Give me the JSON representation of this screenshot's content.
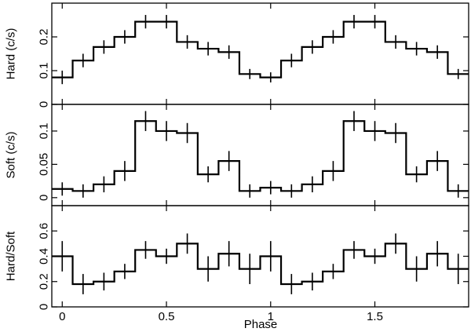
{
  "chart_data": {
    "type": "line",
    "title": "",
    "xlabel": "Phase",
    "xlim": [
      -0.05,
      1.95
    ],
    "xticks": [
      0,
      0.5,
      1,
      1.5
    ],
    "xtick_labels": [
      "0",
      "0.5",
      "1",
      "1.5"
    ],
    "bin_width": 0.1,
    "bin_centers": [
      0,
      0.1,
      0.2,
      0.3,
      0.4,
      0.5,
      0.6,
      0.7,
      0.8,
      0.9,
      1.0,
      1.1,
      1.2,
      1.3,
      1.4,
      1.5,
      1.6,
      1.7,
      1.8,
      1.9
    ],
    "panels": [
      {
        "ylabel": "Hard (c/s)",
        "ylim": [
          0,
          0.3
        ],
        "yticks": [
          0,
          0.1,
          0.2
        ],
        "ytick_labels": [
          "0",
          "0.1",
          "0.2"
        ],
        "values": [
          0.08,
          0.13,
          0.17,
          0.2,
          0.245,
          0.245,
          0.185,
          0.165,
          0.155,
          0.09,
          0.08,
          0.13,
          0.17,
          0.2,
          0.245,
          0.245,
          0.185,
          0.165,
          0.155,
          0.09
        ],
        "errors": [
          0.02,
          0.02,
          0.02,
          0.02,
          0.02,
          0.02,
          0.02,
          0.02,
          0.02,
          0.015,
          0.015,
          0.02,
          0.02,
          0.02,
          0.02,
          0.02,
          0.02,
          0.02,
          0.02,
          0.015
        ]
      },
      {
        "ylabel": "Soft (c/s)",
        "ylim": [
          -0.012,
          0.14
        ],
        "yticks": [
          0,
          0.05,
          0.1
        ],
        "ytick_labels": [
          "0",
          "0.05",
          "0.1"
        ],
        "values": [
          0.013,
          0.01,
          0.02,
          0.04,
          0.115,
          0.1,
          0.097,
          0.035,
          0.055,
          0.01,
          0.015,
          0.01,
          0.02,
          0.04,
          0.115,
          0.1,
          0.097,
          0.035,
          0.055,
          0.01
        ],
        "errors": [
          0.01,
          0.01,
          0.012,
          0.015,
          0.015,
          0.015,
          0.015,
          0.012,
          0.015,
          0.01,
          0.01,
          0.01,
          0.012,
          0.015,
          0.015,
          0.015,
          0.015,
          0.012,
          0.015,
          0.01
        ]
      },
      {
        "ylabel": "Hard/Soft",
        "ylim": [
          0,
          0.8
        ],
        "yticks": [
          0,
          0.2,
          0.4,
          0.6
        ],
        "ytick_labels": [
          "0",
          "0.2",
          "0.4",
          "0.6"
        ],
        "values": [
          0.4,
          0.18,
          0.2,
          0.28,
          0.45,
          0.4,
          0.5,
          0.3,
          0.42,
          0.3,
          0.4,
          0.18,
          0.2,
          0.28,
          0.45,
          0.4,
          0.5,
          0.3,
          0.42,
          0.3
        ],
        "errors": [
          0.12,
          0.08,
          0.07,
          0.06,
          0.07,
          0.06,
          0.08,
          0.1,
          0.1,
          0.12,
          0.12,
          0.08,
          0.07,
          0.06,
          0.07,
          0.06,
          0.08,
          0.1,
          0.1,
          0.12
        ]
      }
    ],
    "grid": false,
    "legend": "none"
  }
}
